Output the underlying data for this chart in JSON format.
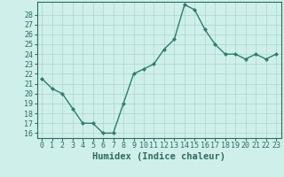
{
  "x": [
    0,
    1,
    2,
    3,
    4,
    5,
    6,
    7,
    8,
    9,
    10,
    11,
    12,
    13,
    14,
    15,
    16,
    17,
    18,
    19,
    20,
    21,
    22,
    23
  ],
  "y": [
    21.5,
    20.5,
    20.0,
    18.5,
    17.0,
    17.0,
    16.0,
    16.0,
    19.0,
    22.0,
    22.5,
    23.0,
    24.5,
    25.5,
    29.0,
    28.5,
    26.5,
    25.0,
    24.0,
    24.0,
    23.5,
    24.0,
    23.5,
    24.0
  ],
  "line_color": "#2e7d6e",
  "marker": "D",
  "marker_size": 2.0,
  "bg_color": "#cff0ea",
  "grid_color": "#aad4cc",
  "xlabel": "Humidex (Indice chaleur)",
  "xlim": [
    -0.5,
    23.5
  ],
  "ylim_min": 15.5,
  "ylim_max": 29.3,
  "yticks": [
    16,
    17,
    18,
    19,
    20,
    21,
    22,
    23,
    24,
    25,
    26,
    27,
    28
  ],
  "xticks": [
    0,
    1,
    2,
    3,
    4,
    5,
    6,
    7,
    8,
    9,
    10,
    11,
    12,
    13,
    14,
    15,
    16,
    17,
    18,
    19,
    20,
    21,
    22,
    23
  ],
  "tick_label_size": 6.0,
  "xlabel_size": 7.5,
  "axis_color": "#2e6b5e",
  "spine_color": "#2e6b5e",
  "linewidth": 1.0
}
